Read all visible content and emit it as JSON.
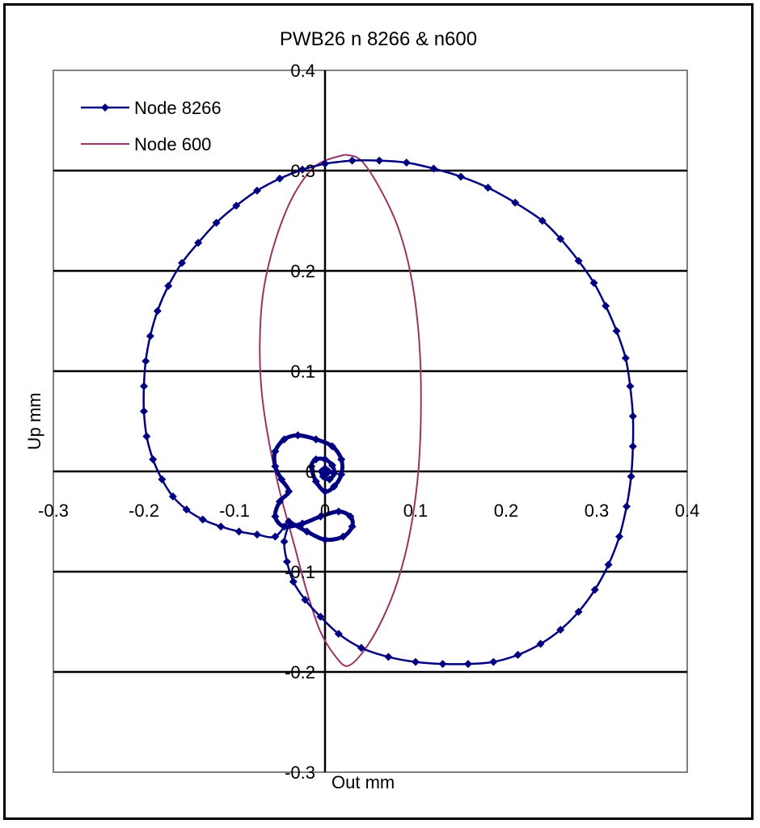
{
  "chart_data": {
    "type": "scatter",
    "title": "PWB26 n 8266 & n600",
    "xlabel": "Out mm",
    "ylabel": "Up mm",
    "xlim": [
      -0.3,
      0.4
    ],
    "ylim": [
      -0.3,
      0.4
    ],
    "x_ticks": [
      "-0.3",
      "-0.2",
      "-0.1",
      "0",
      "0.1",
      "0.2",
      "0.3",
      "0.4"
    ],
    "y_ticks": [
      "-0.3",
      "-0.2",
      "-0.1",
      "0",
      "0.1",
      "0.2",
      "0.3",
      "0.4"
    ],
    "grid": "horizontal",
    "legend_position": "top-left",
    "series": [
      {
        "name": "Node 8266",
        "color": "#000080",
        "marker": "diamond",
        "points": [
          [
            0.0,
            0.307
          ],
          [
            0.03,
            0.31
          ],
          [
            0.06,
            0.31
          ],
          [
            0.09,
            0.308
          ],
          [
            0.12,
            0.302
          ],
          [
            0.15,
            0.294
          ],
          [
            0.18,
            0.283
          ],
          [
            0.21,
            0.268
          ],
          [
            0.24,
            0.25
          ],
          [
            0.26,
            0.232
          ],
          [
            0.28,
            0.21
          ],
          [
            0.297,
            0.188
          ],
          [
            0.31,
            0.165
          ],
          [
            0.322,
            0.14
          ],
          [
            0.332,
            0.113
          ],
          [
            0.337,
            0.085
          ],
          [
            0.34,
            0.055
          ],
          [
            0.34,
            0.025
          ],
          [
            0.338,
            -0.005
          ],
          [
            0.333,
            -0.035
          ],
          [
            0.325,
            -0.065
          ],
          [
            0.313,
            -0.093
          ],
          [
            0.298,
            -0.118
          ],
          [
            0.28,
            -0.14
          ],
          [
            0.26,
            -0.158
          ],
          [
            0.238,
            -0.172
          ],
          [
            0.213,
            -0.183
          ],
          [
            0.186,
            -0.19
          ],
          [
            0.158,
            -0.192
          ],
          [
            0.13,
            -0.192
          ],
          [
            0.1,
            -0.19
          ],
          [
            0.07,
            -0.185
          ],
          [
            0.04,
            -0.176
          ],
          [
            0.015,
            -0.162
          ],
          [
            -0.005,
            -0.145
          ],
          [
            -0.022,
            -0.128
          ],
          [
            -0.035,
            -0.11
          ],
          [
            -0.042,
            -0.09
          ],
          [
            -0.045,
            -0.07
          ],
          [
            -0.04,
            -0.05
          ],
          [
            -0.055,
            -0.065
          ],
          [
            -0.075,
            -0.063
          ],
          [
            -0.095,
            -0.06
          ],
          [
            -0.115,
            -0.055
          ],
          [
            -0.135,
            -0.048
          ],
          [
            -0.153,
            -0.038
          ],
          [
            -0.168,
            -0.025
          ],
          [
            -0.18,
            -0.008
          ],
          [
            -0.19,
            0.012
          ],
          [
            -0.197,
            0.035
          ],
          [
            -0.2,
            0.06
          ],
          [
            -0.2,
            0.085
          ],
          [
            -0.198,
            0.11
          ],
          [
            -0.193,
            0.135
          ],
          [
            -0.185,
            0.16
          ],
          [
            -0.173,
            0.185
          ],
          [
            -0.158,
            0.208
          ],
          [
            -0.14,
            0.228
          ],
          [
            -0.12,
            0.248
          ],
          [
            -0.098,
            0.265
          ],
          [
            -0.075,
            0.28
          ],
          [
            -0.05,
            0.292
          ],
          [
            -0.025,
            0.301
          ],
          [
            0.0,
            0.307
          ]
        ],
        "inner_loop": [
          [
            -0.04,
            -0.05
          ],
          [
            -0.02,
            -0.06
          ],
          [
            0.0,
            -0.068
          ],
          [
            0.02,
            -0.065
          ],
          [
            0.03,
            -0.055
          ],
          [
            0.028,
            -0.045
          ],
          [
            0.015,
            -0.04
          ],
          [
            -0.005,
            -0.045
          ],
          [
            -0.025,
            -0.052
          ],
          [
            -0.045,
            -0.055
          ],
          [
            -0.055,
            -0.045
          ],
          [
            -0.05,
            -0.03
          ],
          [
            -0.04,
            -0.02
          ],
          [
            -0.048,
            -0.008
          ],
          [
            -0.055,
            0.005
          ],
          [
            -0.055,
            0.02
          ],
          [
            -0.045,
            0.032
          ],
          [
            -0.03,
            0.036
          ],
          [
            -0.01,
            0.032
          ],
          [
            0.008,
            0.025
          ],
          [
            0.018,
            0.012
          ],
          [
            0.018,
            -0.003
          ],
          [
            0.01,
            -0.015
          ],
          [
            0.0,
            -0.02
          ],
          [
            -0.01,
            -0.01
          ],
          [
            -0.015,
            0.005
          ],
          [
            -0.01,
            0.012
          ],
          [
            0.0,
            0.012
          ],
          [
            0.008,
            0.006
          ],
          [
            0.01,
            -0.002
          ],
          [
            0.005,
            -0.008
          ],
          [
            -0.002,
            -0.005
          ],
          [
            -0.004,
            0.0
          ],
          [
            0.0,
            0.003
          ],
          [
            0.004,
            0.0
          ],
          [
            0.002,
            -0.002
          ]
        ]
      },
      {
        "name": "Node 600",
        "color": "#993366",
        "marker": "none",
        "points": [
          [
            0.022,
            0.316
          ],
          [
            0.04,
            0.31
          ],
          [
            0.062,
            0.28
          ],
          [
            0.082,
            0.24
          ],
          [
            0.096,
            0.19
          ],
          [
            0.104,
            0.13
          ],
          [
            0.106,
            0.065
          ],
          [
            0.103,
            0.0
          ],
          [
            0.094,
            -0.06
          ],
          [
            0.08,
            -0.11
          ],
          [
            0.062,
            -0.15
          ],
          [
            0.042,
            -0.18
          ],
          [
            0.025,
            -0.194
          ],
          [
            0.012,
            -0.185
          ],
          [
            -0.005,
            -0.16
          ],
          [
            -0.02,
            -0.12
          ],
          [
            -0.035,
            -0.07
          ],
          [
            -0.05,
            -0.02
          ],
          [
            -0.062,
            0.03
          ],
          [
            -0.07,
            0.08
          ],
          [
            -0.072,
            0.13
          ],
          [
            -0.068,
            0.18
          ],
          [
            -0.055,
            0.23
          ],
          [
            -0.035,
            0.275
          ],
          [
            -0.01,
            0.305
          ],
          [
            0.022,
            0.316
          ]
        ]
      }
    ]
  }
}
